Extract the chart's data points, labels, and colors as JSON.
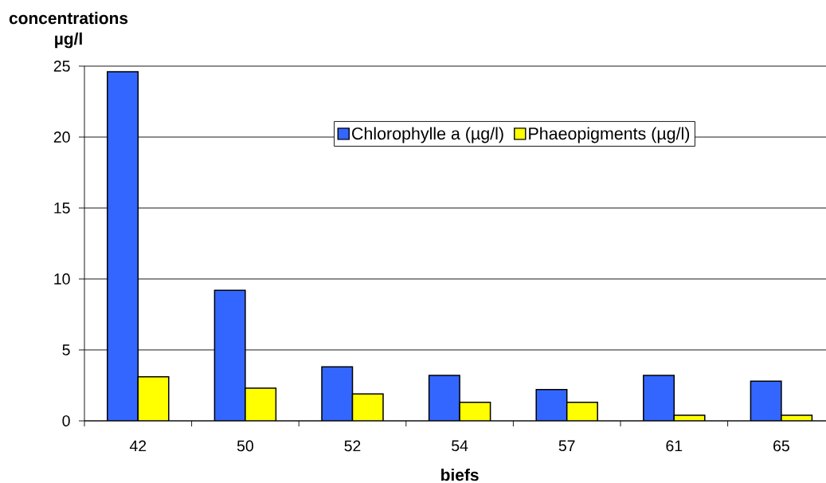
{
  "chart_data": {
    "type": "bar",
    "xlabel": "biefs",
    "ylabel": "concentrations µg/l",
    "categories": [
      "42",
      "50",
      "52",
      "54",
      "57",
      "61",
      "65"
    ],
    "series": [
      {
        "name": "Chlorophylle a  (µg/l)",
        "color": "#3366ff",
        "values": [
          24.6,
          9.2,
          3.8,
          3.2,
          2.2,
          3.2,
          2.8
        ]
      },
      {
        "name": "Phaeopigments (µg/l)",
        "color": "#ffff00",
        "values": [
          3.1,
          2.3,
          1.9,
          1.3,
          1.3,
          0.4,
          0.4
        ]
      }
    ],
    "ylim": [
      0,
      25
    ],
    "yticks": [
      0,
      5,
      10,
      15,
      20,
      25
    ],
    "grid": "y",
    "legend": "top right"
  }
}
